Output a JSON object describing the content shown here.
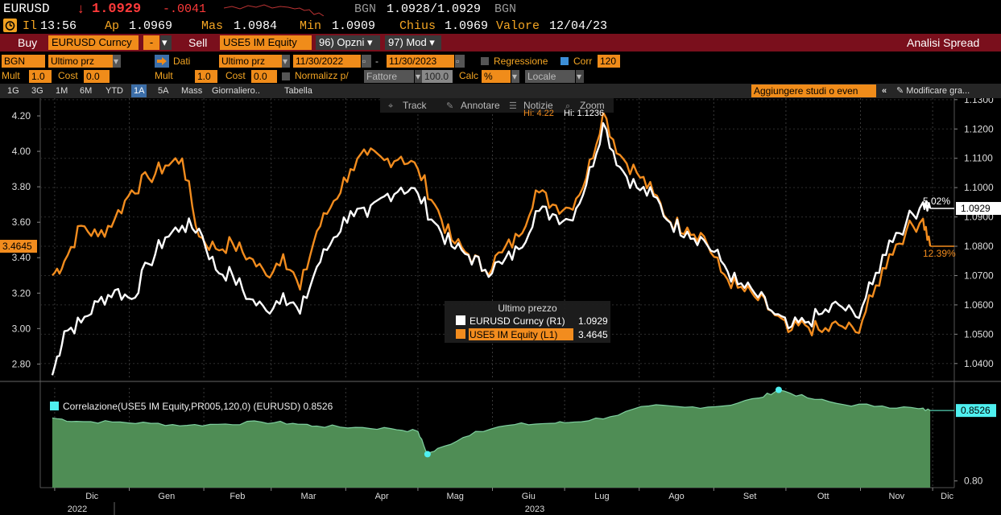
{
  "header": {
    "ticker": "EURUSD",
    "arrow": "↓",
    "last": "1.0929",
    "change": "-.0041",
    "bid_src": "BGN",
    "bid_ask": "1.0928/1.0929",
    "ask_src": "BGN",
    "at_label": "Il",
    "time": "13:56",
    "open_label": "Ap",
    "open": "1.0969",
    "high_label": "Mas",
    "high": "1.0984",
    "low_label": "Min",
    "low": "1.0909",
    "close_label": "Chius",
    "close": "1.0969",
    "value_label": "Valore",
    "date": "12/04/23"
  },
  "toolbar": {
    "buy_label": "Buy",
    "buy_security": "EURUSD Curncy",
    "minus": "-",
    "sell_label": "Sell",
    "sell_security": "USE5 IM Equity",
    "options": "96) Opzni ▾",
    "modify": "97) Mod ▾",
    "spread": "Analisi Spread"
  },
  "settings": {
    "source": "BGN",
    "price_type_1": "Ultimo prz",
    "dati_label": "Dati",
    "price_type_2": "Ultimo prz",
    "start_date": "11/30/2022",
    "end_date": "11/30/2023",
    "regression_label": "Regressione",
    "corr_label": "Corr",
    "corr_period": "120",
    "mult_label": "Mult",
    "mult_1": "1.0",
    "cost_label": "Cost",
    "cost_1": "0.0",
    "mult_label_2": "Mult",
    "mult_2": "1.0",
    "cost_label_2": "Cost",
    "cost_2": "0.0",
    "normalize_label": "Normalizz p/",
    "factor": "Fattore",
    "factor_value": "100.0",
    "calc_label": "Calc",
    "calc_value": "%",
    "locale": "Locale"
  },
  "periods": [
    "1G",
    "3G",
    "1M",
    "6M",
    "YTD",
    "1A",
    "5A",
    "Mass",
    "Giornaliero..",
    "Tabella"
  ],
  "period_selected": "1A",
  "study_placeholder": "Aggiungere studi o even",
  "modify_chart": "Modificare gra...",
  "chart_tools": [
    "Track",
    "Annotare",
    "Notizie",
    "Zoom"
  ],
  "hi_left": "Hi: 4.22",
  "hi_right": "Hi: 1.1236",
  "legend": {
    "title": "Ultimo prezzo",
    "s1_name": "EURUSD Curncy (R1)",
    "s1_value": "1.0929",
    "s2_name": "USE5 IM Equity (L1)",
    "s2_value": "3.4645"
  },
  "corr_legend": "Correlazione(USE5 IM Equity,PR005,120,0) (EURUSD) 0.8526",
  "labels": {
    "last_left": "3.4645",
    "last_right": "1.0929",
    "pct_white": "5.02%",
    "pct_orange": "12.39%",
    "corr_last": "0.8526",
    "corr_axis": "0.80"
  },
  "colors": {
    "eurusd": "#ffffff",
    "use5": "#f28c1e",
    "corr_fill": "#4f8d55",
    "corr_line": "#7fd0a0",
    "toolbar": "#7a0f1c",
    "accent": "#f08c1a"
  },
  "chart_data": [
    {
      "type": "line",
      "series": [
        {
          "name": "EURUSD Curncy (R1)",
          "axis": "right",
          "points": [
            [
              "2022-11-30",
              1.036
            ],
            [
              "2022-12-05",
              1.051
            ],
            [
              "2022-12-12",
              1.054
            ],
            [
              "2022-12-19",
              1.061
            ],
            [
              "2022-12-26",
              1.065
            ],
            [
              "2023-01-02",
              1.062
            ],
            [
              "2023-01-09",
              1.074
            ],
            [
              "2023-01-16",
              1.083
            ],
            [
              "2023-01-23",
              1.087
            ],
            [
              "2023-01-30",
              1.086
            ],
            [
              "2023-02-06",
              1.072
            ],
            [
              "2023-02-13",
              1.07
            ],
            [
              "2023-02-20",
              1.062
            ],
            [
              "2023-02-27",
              1.058
            ],
            [
              "2023-03-06",
              1.064
            ],
            [
              "2023-03-13",
              1.057
            ],
            [
              "2023-03-20",
              1.073
            ],
            [
              "2023-03-27",
              1.083
            ],
            [
              "2023-04-03",
              1.092
            ],
            [
              "2023-04-10",
              1.09
            ],
            [
              "2023-04-17",
              1.097
            ],
            [
              "2023-04-24",
              1.1
            ],
            [
              "2023-05-01",
              1.098
            ],
            [
              "2023-05-08",
              1.088
            ],
            [
              "2023-05-15",
              1.08
            ],
            [
              "2023-05-22",
              1.077
            ],
            [
              "2023-05-29",
              1.072
            ],
            [
              "2023-06-05",
              1.074
            ],
            [
              "2023-06-12",
              1.079
            ],
            [
              "2023-06-19",
              1.092
            ],
            [
              "2023-06-26",
              1.091
            ],
            [
              "2023-07-03",
              1.089
            ],
            [
              "2023-07-10",
              1.101
            ],
            [
              "2023-07-17",
              1.122
            ],
            [
              "2023-07-24",
              1.107
            ],
            [
              "2023-07-31",
              1.1
            ],
            [
              "2023-08-07",
              1.097
            ],
            [
              "2023-08-14",
              1.088
            ],
            [
              "2023-08-21",
              1.085
            ],
            [
              "2023-08-28",
              1.082
            ],
            [
              "2023-09-04",
              1.075
            ],
            [
              "2023-09-11",
              1.067
            ],
            [
              "2023-09-18",
              1.064
            ],
            [
              "2023-09-25",
              1.058
            ],
            [
              "2023-10-02",
              1.052
            ],
            [
              "2023-10-09",
              1.054
            ],
            [
              "2023-10-16",
              1.057
            ],
            [
              "2023-10-23",
              1.06
            ],
            [
              "2023-10-30",
              1.056
            ],
            [
              "2023-11-06",
              1.067
            ],
            [
              "2023-11-13",
              1.082
            ],
            [
              "2023-11-20",
              1.088
            ],
            [
              "2023-11-27",
              1.095
            ],
            [
              "2023-11-30",
              1.0929
            ]
          ]
        },
        {
          "name": "USE5 IM Equity (L1)",
          "axis": "left",
          "points": [
            [
              "2022-11-30",
              3.3
            ],
            [
              "2022-12-05",
              3.38
            ],
            [
              "2022-12-12",
              3.58
            ],
            [
              "2022-12-19",
              3.52
            ],
            [
              "2022-12-26",
              3.62
            ],
            [
              "2023-01-02",
              3.78
            ],
            [
              "2023-01-09",
              3.85
            ],
            [
              "2023-01-16",
              3.92
            ],
            [
              "2023-01-23",
              3.96
            ],
            [
              "2023-01-30",
              3.52
            ],
            [
              "2023-02-06",
              3.45
            ],
            [
              "2023-02-13",
              3.48
            ],
            [
              "2023-02-20",
              3.4
            ],
            [
              "2023-02-27",
              3.3
            ],
            [
              "2023-03-06",
              3.42
            ],
            [
              "2023-03-13",
              3.22
            ],
            [
              "2023-03-20",
              3.55
            ],
            [
              "2023-03-27",
              3.72
            ],
            [
              "2023-04-03",
              3.9
            ],
            [
              "2023-04-10",
              3.98
            ],
            [
              "2023-04-17",
              3.95
            ],
            [
              "2023-04-24",
              3.97
            ],
            [
              "2023-05-01",
              3.9
            ],
            [
              "2023-05-08",
              3.7
            ],
            [
              "2023-05-15",
              3.5
            ],
            [
              "2023-05-22",
              3.42
            ],
            [
              "2023-05-29",
              3.33
            ],
            [
              "2023-06-05",
              3.43
            ],
            [
              "2023-06-12",
              3.52
            ],
            [
              "2023-06-19",
              3.78
            ],
            [
              "2023-06-26",
              3.7
            ],
            [
              "2023-07-03",
              3.68
            ],
            [
              "2023-07-10",
              3.85
            ],
            [
              "2023-07-17",
              4.22
            ],
            [
              "2023-07-24",
              3.98
            ],
            [
              "2023-07-31",
              3.88
            ],
            [
              "2023-08-07",
              3.76
            ],
            [
              "2023-08-14",
              3.6
            ],
            [
              "2023-08-21",
              3.57
            ],
            [
              "2023-08-28",
              3.52
            ],
            [
              "2023-09-04",
              3.32
            ],
            [
              "2023-09-11",
              3.23
            ],
            [
              "2023-09-18",
              3.18
            ],
            [
              "2023-09-25",
              3.1
            ],
            [
              "2023-10-02",
              2.98
            ],
            [
              "2023-10-09",
              3.02
            ],
            [
              "2023-10-16",
              2.98
            ],
            [
              "2023-10-23",
              3.02
            ],
            [
              "2023-10-30",
              2.98
            ],
            [
              "2023-11-06",
              3.18
            ],
            [
              "2023-11-13",
              3.42
            ],
            [
              "2023-11-20",
              3.55
            ],
            [
              "2023-11-27",
              3.62
            ],
            [
              "2023-11-30",
              3.4645
            ]
          ]
        }
      ],
      "left_axis": {
        "ticks": [
          2.8,
          3.0,
          3.2,
          3.4,
          3.6,
          3.8,
          4.0,
          4.2
        ],
        "ylim": [
          2.72,
          4.3
        ]
      },
      "right_axis": {
        "ticks": [
          1.04,
          1.05,
          1.06,
          1.07,
          1.08,
          1.09,
          1.1,
          1.11,
          1.12,
          1.13
        ],
        "ylim": [
          1.035,
          1.1305
        ]
      },
      "x_range": [
        "2022-11-25",
        "2023-12-10"
      ],
      "x_months": [
        "Dic",
        "Gen",
        "Feb",
        "Mar",
        "Apr",
        "Mag",
        "Giu",
        "Lug",
        "Ago",
        "Set",
        "Ott",
        "Nov",
        "Dic"
      ],
      "x_years": [
        "2022",
        "2023"
      ],
      "grid": true
    },
    {
      "type": "area",
      "series": [
        {
          "name": "Correlazione(USE5 IM Equity,PR005,120,0) (EURUSD)",
          "points": [
            [
              "2022-11-30",
              0.847
            ],
            [
              "2022-12-10",
              0.8445
            ],
            [
              "2022-12-25",
              0.844
            ],
            [
              "2023-01-10",
              0.843
            ],
            [
              "2023-01-25",
              0.8415
            ],
            [
              "2023-02-10",
              0.8425
            ],
            [
              "2023-02-25",
              0.844
            ],
            [
              "2023-03-10",
              0.843
            ],
            [
              "2023-03-20",
              0.841
            ],
            [
              "2023-04-05",
              0.84
            ],
            [
              "2023-04-20",
              0.839
            ],
            [
              "2023-05-01",
              0.837
            ],
            [
              "2023-05-05",
              0.82
            ],
            [
              "2023-05-12",
              0.826
            ],
            [
              "2023-05-25",
              0.837
            ],
            [
              "2023-06-10",
              0.842
            ],
            [
              "2023-06-25",
              0.843
            ],
            [
              "2023-07-05",
              0.844
            ],
            [
              "2023-07-20",
              0.848
            ],
            [
              "2023-08-05",
              0.856
            ],
            [
              "2023-08-20",
              0.855
            ],
            [
              "2023-09-05",
              0.856
            ],
            [
              "2023-09-20",
              0.862
            ],
            [
              "2023-09-28",
              0.868
            ],
            [
              "2023-10-10",
              0.862
            ],
            [
              "2023-10-25",
              0.857
            ],
            [
              "2023-11-10",
              0.856
            ],
            [
              "2023-11-25",
              0.854
            ],
            [
              "2023-11-30",
              0.8526
            ]
          ]
        }
      ],
      "ylim": [
        0.795,
        0.8695
      ],
      "ticks": [
        0.8
      ],
      "last": 0.8526
    }
  ]
}
